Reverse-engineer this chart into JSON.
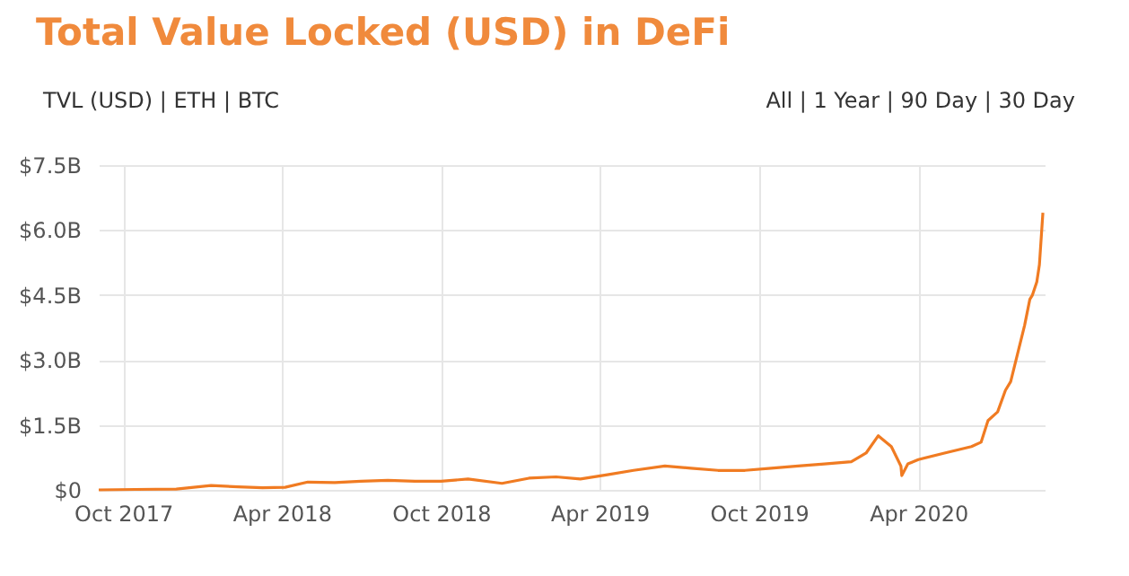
{
  "chart_data": {
    "type": "line",
    "title": "Total Value Locked (USD) in DeFi",
    "annotations": [
      "TVL (USD) | ETH | BTC",
      "All | 1 Year | 90 Day | 30 Day"
    ],
    "x": [
      "2017-09-03",
      "2017-10-15",
      "2017-12-01",
      "2018-01-10",
      "2018-02-10",
      "2018-03-10",
      "2018-04-05",
      "2018-05-01",
      "2018-06-01",
      "2018-07-01",
      "2018-08-01",
      "2018-09-01",
      "2018-10-01",
      "2018-11-01",
      "2018-12-10",
      "2019-01-10",
      "2019-02-10",
      "2019-03-10",
      "2019-04-10",
      "2019-05-10",
      "2019-06-15",
      "2019-07-15",
      "2019-08-15",
      "2019-09-15",
      "2019-10-15",
      "2019-11-15",
      "2019-12-15",
      "2020-01-15",
      "2020-02-01",
      "2020-02-15",
      "2020-03-01",
      "2020-03-12",
      "2020-03-13",
      "2020-03-20",
      "2020-04-01",
      "2020-05-01",
      "2020-06-01",
      "2020-06-12",
      "2020-06-20",
      "2020-07-01",
      "2020-07-10",
      "2020-07-16",
      "2020-08-01",
      "2020-08-07",
      "2020-08-10",
      "2020-08-15",
      "2020-08-18",
      "2020-08-22"
    ],
    "series": [
      {
        "color": "#f07b22",
        "values": [
          0.0,
          0.01,
          0.02,
          0.1,
          0.07,
          0.05,
          0.06,
          0.18,
          0.17,
          0.2,
          0.22,
          0.2,
          0.2,
          0.25,
          0.15,
          0.27,
          0.3,
          0.25,
          0.35,
          0.45,
          0.55,
          0.5,
          0.45,
          0.45,
          0.5,
          0.55,
          0.6,
          0.65,
          0.85,
          1.25,
          1.0,
          0.55,
          0.33,
          0.6,
          0.7,
          0.85,
          1.0,
          1.1,
          1.6,
          1.8,
          2.3,
          2.5,
          3.8,
          4.4,
          4.5,
          4.8,
          5.2,
          6.4
        ]
      }
    ],
    "xlim": [
      "2017-09-03",
      "2020-08-24"
    ],
    "xticks": [
      {
        "value": "2017-10-01",
        "label": "Oct 2017"
      },
      {
        "value": "2018-04-01",
        "label": "Apr 2018"
      },
      {
        "value": "2018-10-01",
        "label": "Oct 2018"
      },
      {
        "value": "2019-04-01",
        "label": "Apr 2019"
      },
      {
        "value": "2019-10-01",
        "label": "Oct 2019"
      },
      {
        "value": "2020-04-01",
        "label": "Apr 2020"
      }
    ],
    "ylim": [
      0,
      7.5
    ],
    "yticks": [
      {
        "value": 0,
        "label": "$0"
      },
      {
        "value": 1.5,
        "label": "$1.5B"
      },
      {
        "value": 3,
        "label": "$3.0B"
      },
      {
        "value": 4.5,
        "label": "$4.5B"
      },
      {
        "value": 6,
        "label": "$6.0B"
      },
      {
        "value": 7.5,
        "label": "$7.5B"
      }
    ],
    "grid": true,
    "marker": "none",
    "line_style": "solid"
  }
}
